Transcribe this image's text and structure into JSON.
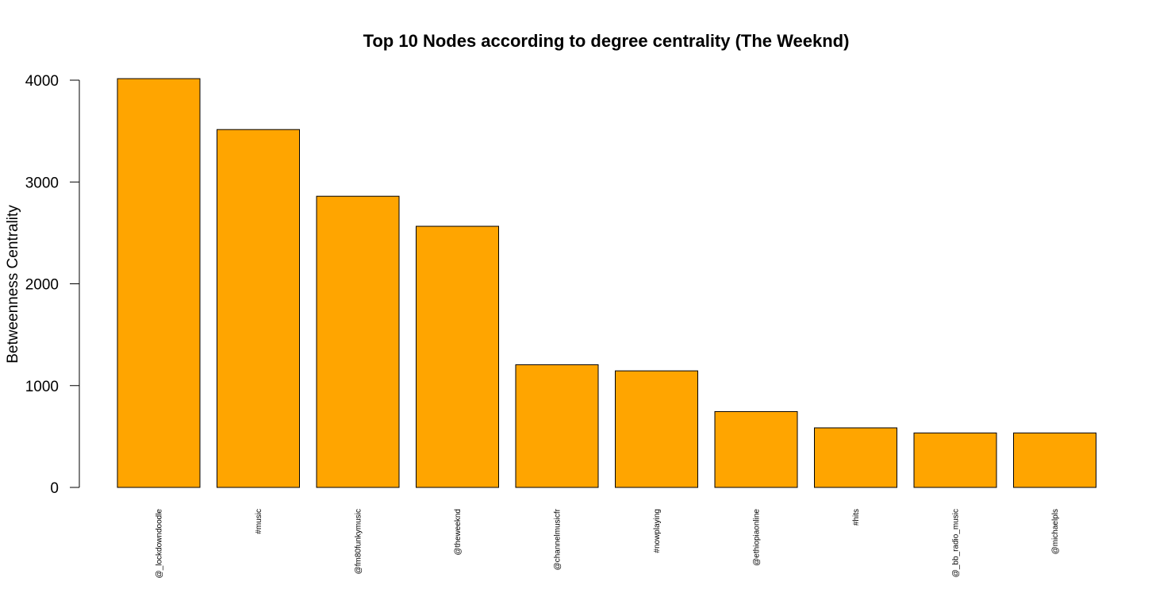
{
  "chart_data": {
    "type": "bar",
    "title": "Top 10 Nodes according to degree centrality (The Weeknd)",
    "xlabel": "",
    "ylabel": "Betweenness Centrality",
    "categories": [
      "@_lockdowndoodle",
      "#music",
      "@fm80funkymusic",
      "@theweeknd",
      "@channelmusicfr",
      "#nowplaying",
      "@ethiopiaonline",
      "#hits",
      "@_bb_radio_music",
      "@michaelpls"
    ],
    "values": [
      4015,
      3515,
      2860,
      2565,
      1205,
      1145,
      745,
      585,
      535,
      535
    ],
    "ylim": [
      0,
      4000
    ],
    "yticks": [
      0,
      1000,
      2000,
      3000,
      4000
    ],
    "bar_color": "#FFA500",
    "bar_border_color": "#000000",
    "grid": false,
    "legend": "none"
  }
}
